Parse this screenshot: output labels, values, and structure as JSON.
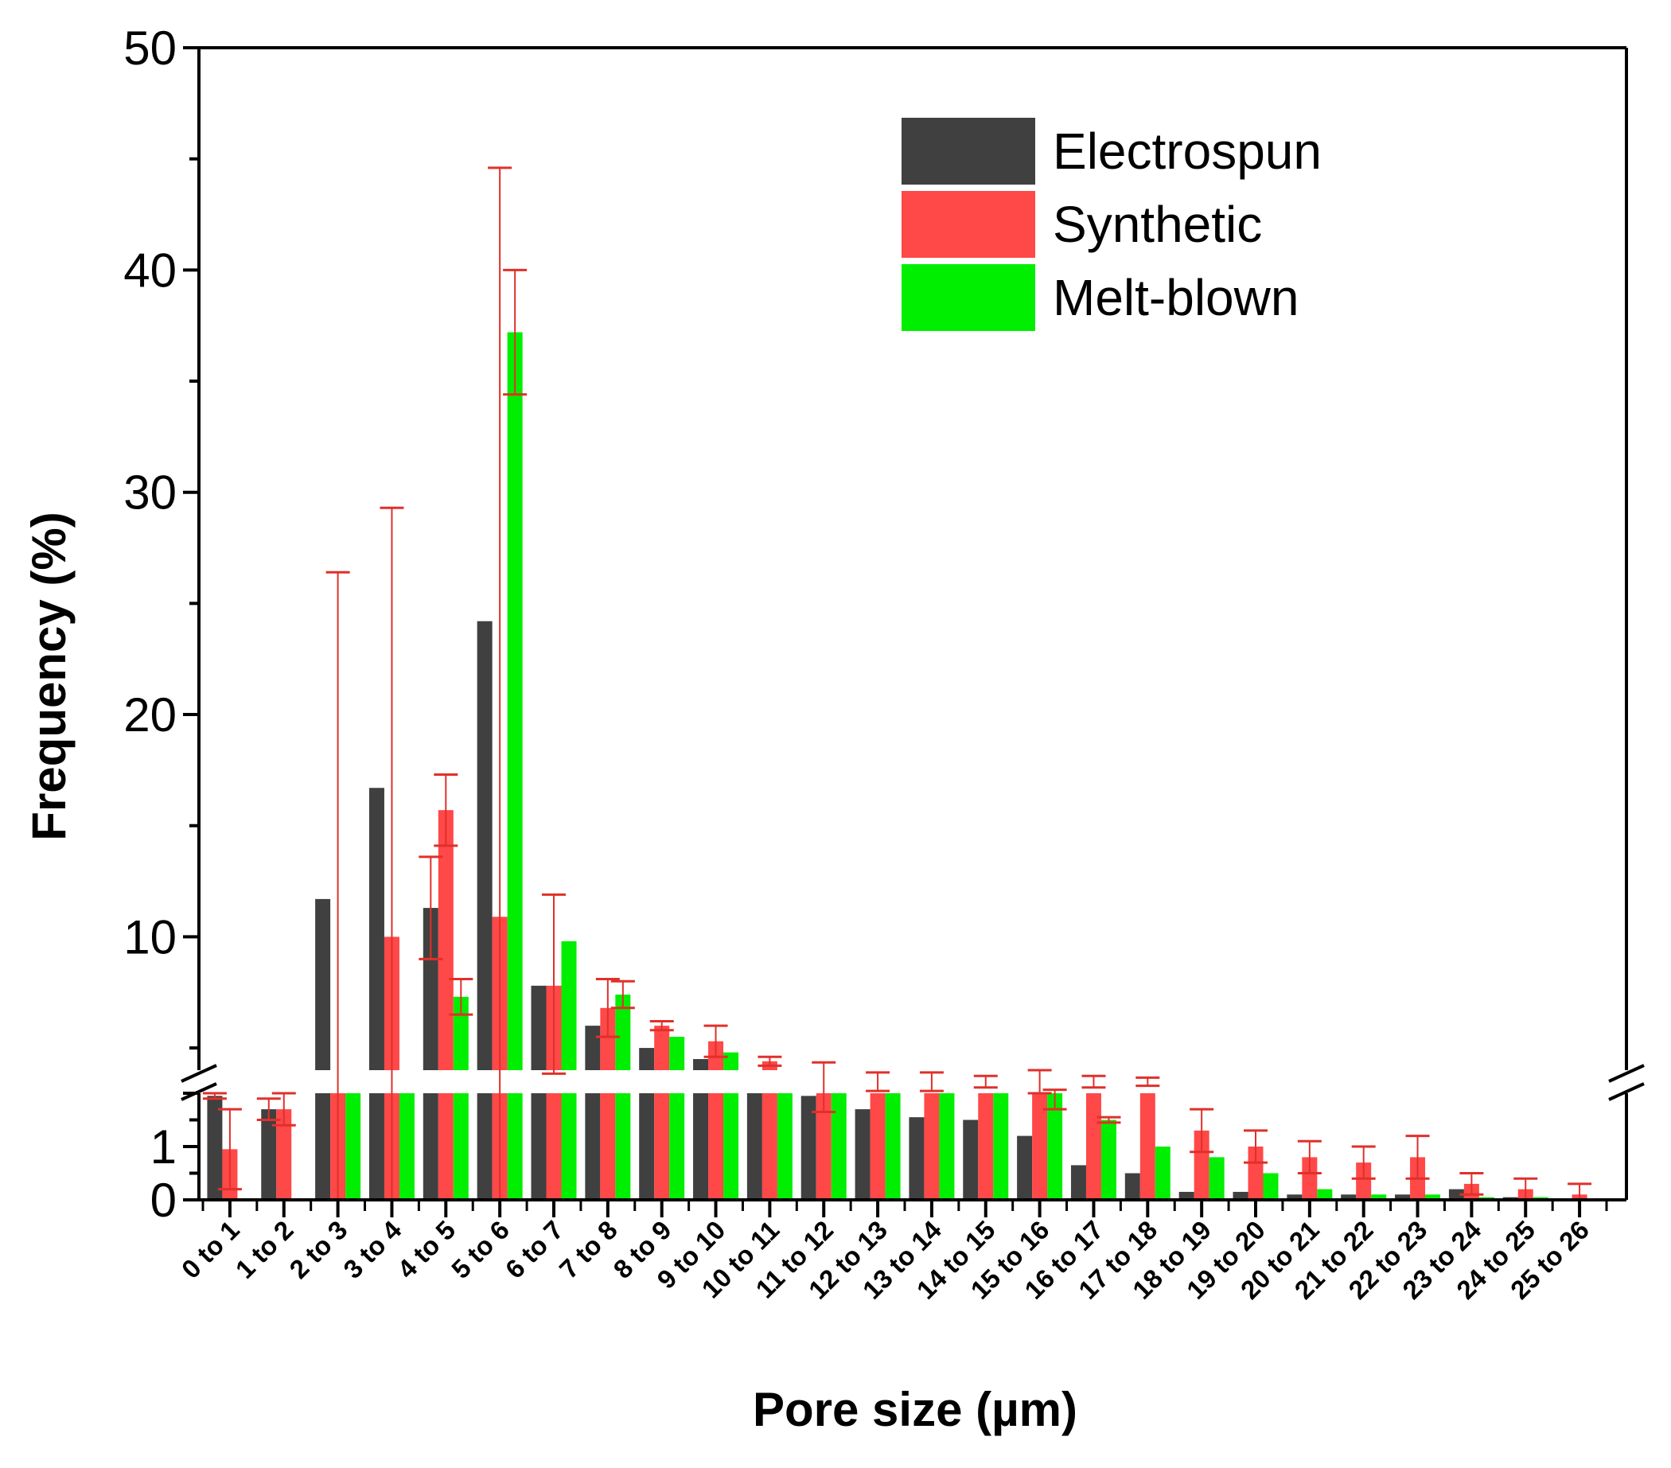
{
  "chart_data": {
    "type": "bar",
    "title": "",
    "xlabel": "Pore size (µm)",
    "ylabel": "Frequency (%)",
    "y_break": [
      2,
      4
    ],
    "ylim": [
      0,
      50
    ],
    "yticks_lower": [
      "0",
      "1"
    ],
    "yticks_upper": [
      "10",
      "20",
      "30",
      "40",
      "50"
    ],
    "legend_position": "top-right",
    "categories": [
      "0 to 1",
      "1 to 2",
      "2 to 3",
      "3 to 4",
      "4 to 5",
      "5 to 6",
      "6 to 7",
      "7 to 8",
      "8 to 9",
      "9 to 10",
      "10 to 11",
      "11 to 12",
      "12 to 13",
      "13 to 14",
      "14 to 15",
      "15 to 16",
      "16 to 17",
      "17 to 18",
      "18 to 19",
      "19 to 20",
      "20 to 21",
      "21 to 22",
      "22 to 23",
      "23 to 24",
      "24 to 25",
      "25 to 26"
    ],
    "series": [
      {
        "name": "Electrospun",
        "color": "#404040",
        "values": [
          1.95,
          1.7,
          11.7,
          16.7,
          11.3,
          24.2,
          7.8,
          6.0,
          5.0,
          4.5,
          4.0,
          1.95,
          1.7,
          1.55,
          1.5,
          1.2,
          0.65,
          0.5,
          0.15,
          0.15,
          0.1,
          0.1,
          0.1,
          0.2,
          0.05,
          0
        ],
        "errors": [
          0.05,
          0.2,
          0,
          0,
          2.3,
          0,
          0,
          0,
          0,
          0,
          0,
          0,
          0,
          0,
          0,
          0,
          0,
          0,
          0,
          0,
          0,
          0,
          0,
          0,
          0,
          0
        ]
      },
      {
        "name": "Synthetic",
        "color": "#ff4848",
        "values": [
          0.95,
          1.7,
          3.0,
          10.0,
          15.7,
          10.9,
          7.8,
          6.8,
          6.0,
          5.3,
          4.4,
          3.0,
          3.0,
          3.0,
          3.0,
          3.0,
          3.0,
          3.0,
          1.3,
          1.0,
          0.8,
          0.7,
          0.8,
          0.3,
          0.2,
          0.1
        ],
        "errors": [
          0.75,
          0.3,
          23.4,
          19.3,
          1.6,
          33.7,
          4.1,
          1.3,
          0.2,
          0.7,
          0.2,
          1.35,
          0.8,
          0.8,
          0.5,
          1.0,
          0.5,
          0.35,
          0.4,
          0.3,
          0.3,
          0.3,
          0.4,
          0.2,
          0.2,
          0.2
        ]
      },
      {
        "name": "Melt-blown",
        "color": "#00ee00",
        "values": [
          0,
          0,
          3.0,
          3.0,
          7.3,
          37.2,
          9.8,
          7.4,
          5.5,
          4.8,
          4.0,
          3.0,
          3.0,
          3.0,
          3.0,
          2.0,
          1.5,
          1.0,
          0.8,
          0.5,
          0.2,
          0.1,
          0.1,
          0.05,
          0.05,
          0
        ],
        "errors": [
          0,
          0,
          0,
          0,
          0.8,
          2.8,
          0,
          0.6,
          0,
          0,
          0,
          0,
          0,
          0,
          0,
          0.3,
          0.05,
          0,
          0,
          0,
          0,
          0,
          0,
          0,
          0,
          0
        ]
      }
    ]
  }
}
